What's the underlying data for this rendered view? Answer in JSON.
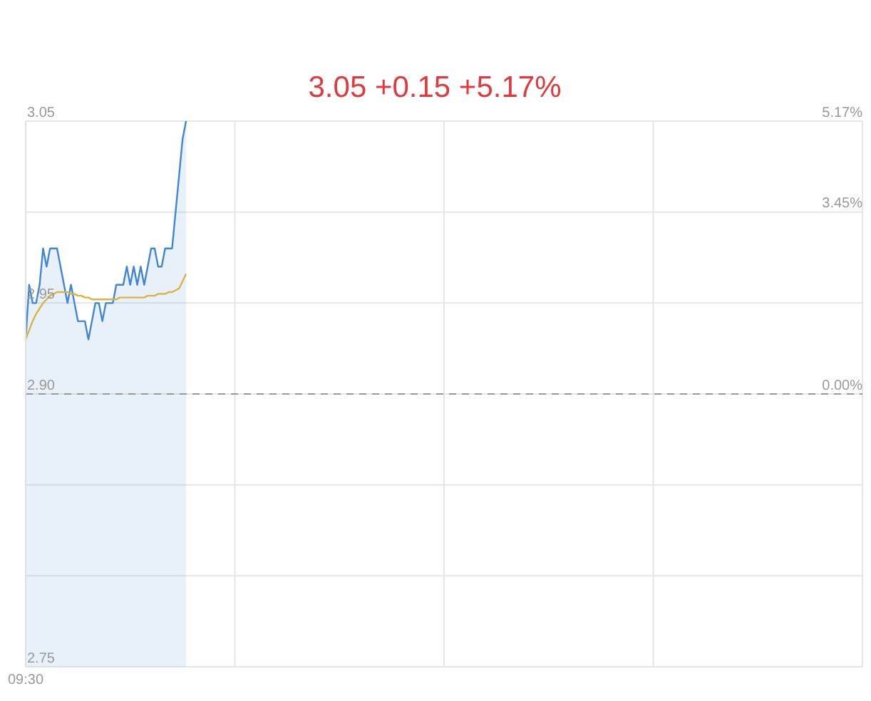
{
  "chart_data": {
    "type": "area",
    "subtitle": "3.05 +0.15 +5.17%",
    "categories": [
      "09:30",
      null,
      null,
      null,
      null,
      null,
      null,
      null,
      null,
      null,
      null,
      null,
      null,
      null,
      null,
      null,
      null,
      null,
      null,
      null,
      null,
      null,
      null,
      null,
      null,
      null,
      null,
      null,
      null,
      null,
      null,
      null,
      null,
      null,
      null,
      null,
      null,
      null,
      null,
      null,
      null,
      null,
      null,
      null,
      null,
      null,
      null,
      null,
      null,
      null,
      null,
      null,
      null,
      null,
      null,
      null,
      null,
      null,
      null,
      null,
      null,
      null,
      null,
      null,
      null,
      null,
      null,
      null,
      null,
      null,
      null,
      null,
      null,
      null,
      null,
      null,
      null,
      null,
      null,
      null,
      null,
      null,
      null,
      null,
      null,
      null,
      null,
      null,
      null,
      null,
      null,
      null,
      null,
      null,
      null,
      null,
      null,
      null,
      null,
      null,
      null,
      null,
      null,
      null,
      null,
      null,
      null,
      null,
      null,
      null,
      null,
      null,
      null,
      null,
      null,
      null,
      null,
      null,
      null,
      null,
      null,
      null,
      null,
      null,
      null,
      null,
      null,
      null,
      null,
      null,
      null,
      null,
      null,
      null,
      null,
      null,
      null,
      null,
      null,
      null,
      null,
      null,
      null,
      null,
      null,
      null,
      null,
      null,
      null,
      null,
      null,
      null,
      null,
      null,
      null,
      null,
      null,
      null,
      null,
      null,
      null,
      null,
      null,
      null,
      null,
      null,
      null,
      null,
      null,
      null,
      null,
      null,
      null,
      null,
      null,
      null,
      null,
      null,
      null,
      null,
      null,
      null,
      null,
      null,
      null,
      null,
      null,
      null,
      null,
      null,
      null,
      null,
      null,
      null,
      null,
      null,
      null,
      null,
      null,
      null,
      null,
      null,
      null,
      null,
      null,
      null,
      null,
      null,
      null,
      null,
      null,
      null,
      null,
      null,
      null,
      null,
      null,
      null,
      null,
      null,
      null,
      null,
      null,
      null,
      null,
      null,
      null,
      null,
      null,
      null,
      null,
      null,
      null,
      null,
      null,
      null,
      null,
      null,
      null,
      null,
      null
    ],
    "ylim": [
      2.75,
      3.05
    ],
    "yticks": [
      {
        "value": 3.05,
        "label": "3.05"
      },
      {
        "value": 3.0,
        "label": null
      },
      {
        "value": 2.95,
        "label": "2.95"
      },
      {
        "value": 2.9,
        "label": "2.90"
      },
      {
        "value": 2.85,
        "label": null
      },
      {
        "value": 2.8,
        "label": null
      },
      {
        "value": 2.75,
        "label": "2.75"
      }
    ],
    "y2lim": [
      -5.17,
      5.17
    ],
    "y2ticks": [
      {
        "value": 5.17,
        "label": "5.17%"
      },
      {
        "value": 3.45,
        "label": "3.45%"
      },
      {
        "value": 0,
        "label": "0.00%"
      }
    ],
    "grid": true,
    "ref_lines": [
      {
        "axis": "y",
        "value": 2.9,
        "line_style": "dashed",
        "color": "#999999"
      }
    ],
    "series": [
      {
        "color": "#3f86d8",
        "values": [
          2.93,
          2.96,
          2.95,
          2.95,
          2.96,
          2.98,
          2.97,
          2.98,
          2.98,
          2.98,
          2.97,
          2.96,
          2.95,
          2.96,
          2.95,
          2.94,
          2.94,
          2.94,
          2.93,
          2.94,
          2.95,
          2.95,
          2.94,
          2.95,
          2.95,
          2.95,
          2.96,
          2.96,
          2.96,
          2.97,
          2.96,
          2.97,
          2.96,
          2.97,
          2.96,
          2.97,
          2.98,
          2.98,
          2.97,
          2.97,
          2.98,
          2.98,
          2.98,
          3.0,
          3.02,
          3.04,
          3.05,
          null,
          null,
          null,
          null,
          null,
          null,
          null,
          null,
          null,
          null,
          null,
          null,
          null,
          null,
          null,
          null,
          null,
          null,
          null,
          null,
          null,
          null,
          null,
          null,
          null,
          null,
          null,
          null,
          null,
          null,
          null,
          null,
          null,
          null,
          null,
          null,
          null,
          null,
          null,
          null,
          null,
          null,
          null,
          null,
          null,
          null,
          null,
          null,
          null,
          null,
          null,
          null,
          null,
          null,
          null,
          null,
          null,
          null,
          null,
          null,
          null,
          null,
          null,
          null,
          null,
          null,
          null,
          null,
          null,
          null,
          null,
          null,
          null,
          null,
          null,
          null,
          null,
          null,
          null,
          null,
          null,
          null,
          null,
          null,
          null,
          null,
          null,
          null,
          null,
          null,
          null,
          null,
          null,
          null,
          null,
          null,
          null,
          null,
          null,
          null,
          null,
          null,
          null,
          null,
          null,
          null,
          null,
          null,
          null,
          null,
          null,
          null,
          null,
          null,
          null,
          null,
          null,
          null,
          null,
          null,
          null,
          null,
          null,
          null,
          null,
          null,
          null,
          null,
          null,
          null,
          null,
          null,
          null,
          null,
          null,
          null,
          null,
          null,
          null,
          null,
          null,
          null,
          null,
          null,
          null,
          null,
          null,
          null,
          null,
          null,
          null,
          null,
          null,
          null,
          null,
          null,
          null,
          null,
          null,
          null,
          null,
          null,
          null,
          null,
          null,
          null,
          null,
          null,
          null,
          null,
          null,
          null,
          null,
          null,
          null,
          null,
          null,
          null,
          null,
          null,
          null,
          null,
          null,
          null,
          null,
          null,
          null,
          null,
          null,
          null,
          null,
          null,
          null,
          null
        ]
      },
      {
        "type": "line",
        "color": "#d9b443",
        "values": [
          2.93,
          2.935,
          2.94,
          2.944,
          2.947,
          2.95,
          2.952,
          2.954,
          2.955,
          2.956,
          2.956,
          2.956,
          2.956,
          2.955,
          2.955,
          2.954,
          2.954,
          2.953,
          2.953,
          2.952,
          2.952,
          2.952,
          2.952,
          2.952,
          2.952,
          2.952,
          2.952,
          2.953,
          2.953,
          2.953,
          2.953,
          2.953,
          2.953,
          2.953,
          2.953,
          2.954,
          2.954,
          2.954,
          2.955,
          2.955,
          2.955,
          2.956,
          2.956,
          2.957,
          2.958,
          2.962,
          2.966,
          null,
          null,
          null,
          null,
          null,
          null,
          null,
          null,
          null,
          null,
          null,
          null,
          null,
          null,
          null,
          null,
          null,
          null,
          null,
          null,
          null,
          null,
          null,
          null,
          null,
          null,
          null,
          null,
          null,
          null,
          null,
          null,
          null,
          null,
          null,
          null,
          null,
          null,
          null,
          null,
          null,
          null,
          null,
          null,
          null,
          null,
          null,
          null,
          null,
          null,
          null,
          null,
          null,
          null,
          null,
          null,
          null,
          null,
          null,
          null,
          null,
          null,
          null,
          null,
          null,
          null,
          null,
          null,
          null,
          null,
          null,
          null,
          null,
          null,
          null,
          null,
          null,
          null,
          null,
          null,
          null,
          null,
          null,
          null,
          null,
          null,
          null,
          null,
          null,
          null,
          null,
          null,
          null,
          null,
          null,
          null,
          null,
          null,
          null,
          null,
          null,
          null,
          null,
          null,
          null,
          null,
          null,
          null,
          null,
          null,
          null,
          null,
          null,
          null,
          null,
          null,
          null,
          null,
          null,
          null,
          null,
          null,
          null,
          null,
          null,
          null,
          null,
          null,
          null,
          null,
          null,
          null,
          null,
          null,
          null,
          null,
          null,
          null,
          null,
          null,
          null,
          null,
          null,
          null,
          null,
          null,
          null,
          null,
          null,
          null,
          null,
          null,
          null,
          null,
          null,
          null,
          null,
          null,
          null,
          null,
          null,
          null,
          null,
          null,
          null,
          null,
          null,
          null,
          null,
          null,
          null,
          null,
          null,
          null,
          null,
          null,
          null,
          null,
          null,
          null,
          null,
          null,
          null,
          null,
          null,
          null,
          null,
          null,
          null,
          null,
          null,
          null,
          null,
          null
        ]
      }
    ]
  }
}
